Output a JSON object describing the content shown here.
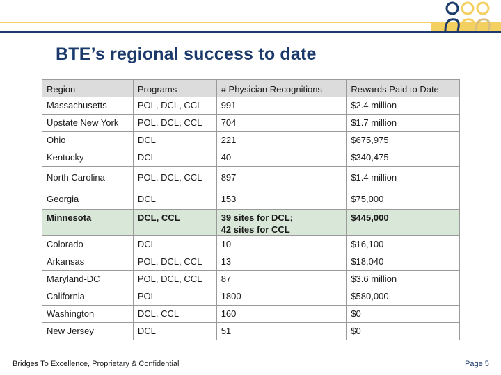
{
  "header": {
    "brand_colors": {
      "navy": "#1b3a6b",
      "gold": "#f4d060",
      "highlight": "#d9e7d9"
    },
    "logo_icon": "people-circles-logo"
  },
  "title": "BTE’s regional success to date",
  "table": {
    "columns": [
      "Region",
      "Programs",
      "# Physician Recognitions",
      "Rewards Paid to Date"
    ],
    "rows": [
      {
        "region": "Massachusetts",
        "programs": "POL, DCL, CCL",
        "recognitions": "991",
        "rewards": "$2.4 million"
      },
      {
        "region": "Upstate New York",
        "programs": "POL, DCL, CCL",
        "recognitions": "704",
        "rewards": "$1.7 million"
      },
      {
        "region": "Ohio",
        "programs": "DCL",
        "recognitions": "221",
        "rewards": "$675,975"
      },
      {
        "region": "Kentucky",
        "programs": "DCL",
        "recognitions": "40",
        "rewards": "$340,475"
      },
      {
        "region": "North Carolina",
        "programs": "POL, DCL, CCL",
        "recognitions": "897",
        "rewards": "$1.4 million"
      },
      {
        "region": "Georgia",
        "programs": "DCL",
        "recognitions": "153",
        "rewards": "$75,000"
      },
      {
        "region": "Minnesota",
        "programs": "DCL, CCL",
        "recognitions_line1": "39 sites for DCL;",
        "recognitions_line2": "42 sites for CCL",
        "rewards": "$445,000"
      },
      {
        "region": "Colorado",
        "programs": "DCL",
        "recognitions": "10",
        "rewards": "$16,100"
      },
      {
        "region": "Arkansas",
        "programs": "POL, DCL, CCL",
        "recognitions": "13",
        "rewards": "$18,040"
      },
      {
        "region": "Maryland-DC",
        "programs": "POL, DCL, CCL",
        "recognitions": "87",
        "rewards": "$3.6 million"
      },
      {
        "region": "California",
        "programs": "POL",
        "recognitions": "1800",
        "rewards": "$580,000"
      },
      {
        "region": "Washington",
        "programs": "DCL, CCL",
        "recognitions": "160",
        "rewards": "$0"
      },
      {
        "region": "New Jersey",
        "programs": "DCL",
        "recognitions": "51",
        "rewards": "$0"
      }
    ]
  },
  "footer": {
    "left": "Bridges To Excellence, Proprietary & Confidential",
    "right": "Page 5"
  }
}
